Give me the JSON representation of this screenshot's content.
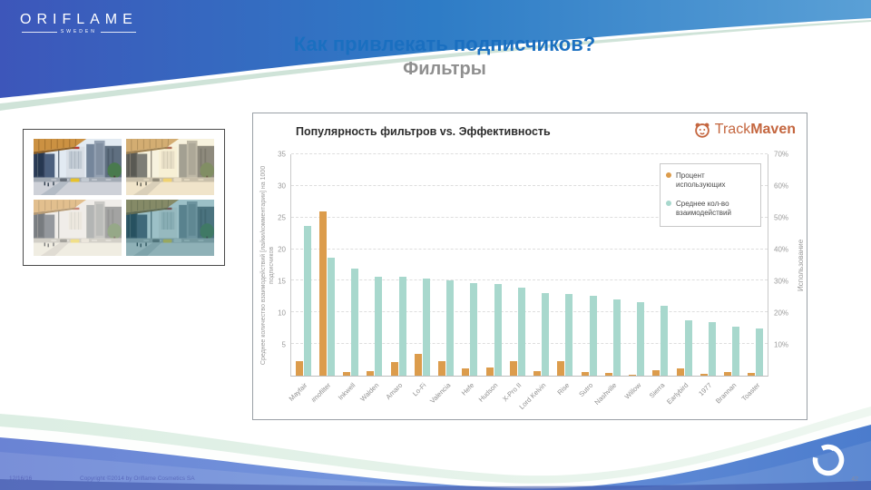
{
  "slide": {
    "logo": {
      "brand": "ORIFLAME",
      "sub": "SWEDEN"
    },
    "title": "Как привлекать подписчиков?",
    "subtitle": "Фильтры",
    "footer": {
      "date": "12/16/16",
      "copyright": "Copyright ©2014 by Oriflame Cosmetics SA",
      "page": "42"
    }
  },
  "chart_panel": {
    "title": "Популярность фильтров vs. Эффективность",
    "brand": {
      "track": "Track",
      "maven": "Maven"
    }
  },
  "colors": {
    "title_blue": "#1a6fc0",
    "bar_orange": "#dc9c4c",
    "bar_teal": "#a8d8cd",
    "trackmaven_orange": "#c4663f"
  },
  "chart_data": {
    "type": "bar",
    "title": "Популярность фильтров vs. Эффективность",
    "categories": [
      "Mayfair",
      "#nofilter",
      "Inkwell",
      "Walden",
      "Amaro",
      "Lo-Fi",
      "Valencia",
      "Hefe",
      "Hudson",
      "X-Pro II",
      "Lord Kelvin",
      "Rise",
      "Sutro",
      "Nashville",
      "Willow",
      "Sierra",
      "Earlybird",
      "1977",
      "Brannan",
      "Toaster"
    ],
    "series": [
      {
        "name": "Процент использующих",
        "axis": "right",
        "color": "#dc9c4c",
        "values": [
          4.7,
          52,
          1.1,
          1.3,
          4.4,
          6.8,
          4.7,
          2.2,
          2.7,
          4.6,
          1.4,
          4.5,
          1.2,
          1.0,
          0.4,
          1.6,
          2.4,
          0.5,
          1.2,
          1.0
        ]
      },
      {
        "name": "Среднее кол-во взаимодействий",
        "axis": "left",
        "color": "#a8d8cd",
        "values": [
          23.7,
          18.6,
          16.9,
          15.7,
          15.6,
          15.3,
          15.1,
          14.7,
          14.5,
          13.9,
          13.0,
          12.9,
          12.6,
          12.1,
          11.6,
          11.1,
          8.8,
          8.4,
          7.8,
          7.5
        ]
      }
    ],
    "left_axis": {
      "label": "Среднее количество взаимодействий [лайки/комментарии] на 1000 подписчиков",
      "ticks": [
        35,
        30,
        25,
        20,
        15,
        10,
        5
      ],
      "max": 35
    },
    "right_axis": {
      "label": "Использование",
      "ticks": [
        "70%",
        "60%",
        "50%",
        "40%",
        "30%",
        "20%",
        "10%"
      ],
      "max": 70
    },
    "legend": [
      "Процент использующих",
      "Среднее кол-во взаимодействий"
    ],
    "legend_position": "inside top-right",
    "grid": "horizontal dashed"
  }
}
